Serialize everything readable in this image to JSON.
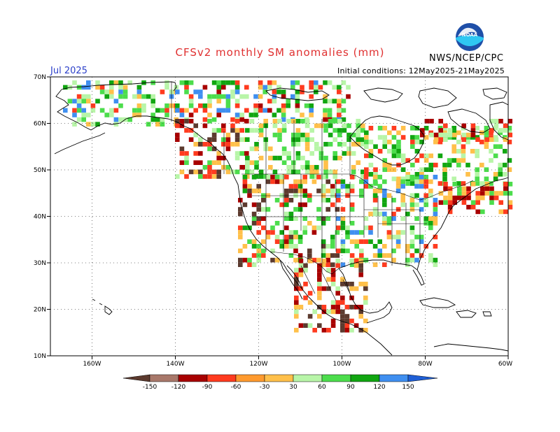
{
  "header": {
    "title": "CFSv2 monthly SM anomalies (mm)",
    "month": "Jul 2025",
    "initial_conditions": "Initial conditions: 12May2025-21May2025",
    "agency": "NWS/NCEP/CPC",
    "logo_text": "NOAA"
  },
  "map": {
    "lat_labels": [
      "70N",
      "60N",
      "50N",
      "40N",
      "30N",
      "20N",
      "10N"
    ],
    "lon_labels": [
      "160W",
      "140W",
      "120W",
      "100W",
      "80W",
      "60W"
    ],
    "lat_range": [
      10,
      70
    ],
    "lon_range": [
      -170,
      -60
    ],
    "ocean_color": "#ffffff",
    "grid": "dotted"
  },
  "colorbar": {
    "labels": [
      "-150",
      "-120",
      "-90",
      "-60",
      "-30",
      "30",
      "60",
      "90",
      "120",
      "150"
    ],
    "colors": [
      "#5c3a2e",
      "#a8786a",
      "#a80000",
      "#ff3b1f",
      "#ff9a2e",
      "#ffc04a",
      "#ffffff",
      "#b8f5a8",
      "#4cdd4c",
      "#11a611",
      "#3f8ff0",
      "#1f5fd6"
    ]
  },
  "legend_colors": {
    "dry_extreme": "#5c3a2e",
    "dry_strong": "#a80000",
    "dry_moderate": "#ff3b1f",
    "dry_weak": "#ffc04a",
    "wet_weak": "#b8f5a8",
    "wet_moderate": "#4cdd4c",
    "wet_strong": "#11a611",
    "wet_extreme": "#3f8ff0"
  }
}
